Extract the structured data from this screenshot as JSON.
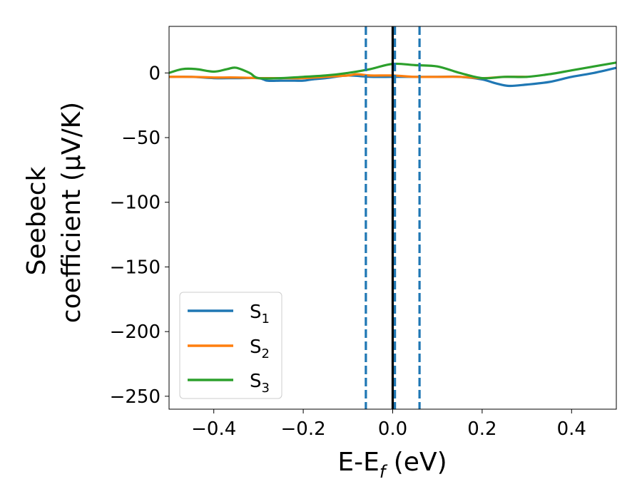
{
  "chart_data": {
    "type": "line",
    "xlabel": {
      "main": "E-E",
      "sub": "f",
      "suffix": " (eV)"
    },
    "ylabel": {
      "line1": "Seebeck",
      "line2": "coefficient  (μV/K)"
    },
    "xlim": [
      -0.5,
      0.5
    ],
    "ylim": [
      -260,
      36
    ],
    "xticks": [
      -0.4,
      -0.2,
      0.0,
      0.2,
      0.4
    ],
    "xtick_labels": [
      "−0.4",
      "−0.2",
      "0.0",
      "0.2",
      "0.4"
    ],
    "yticks": [
      0,
      -50,
      -100,
      -150,
      -200,
      -250
    ],
    "ytick_labels": [
      "0",
      "−50",
      "−100",
      "−150",
      "−200",
      "−250"
    ],
    "grid": false,
    "legend_position": "lower-left",
    "vlines": [
      {
        "x": 0.0,
        "style": "solid",
        "color": "#000000"
      },
      {
        "x": -0.06,
        "style": "dashed",
        "color": "#1f77b4"
      },
      {
        "x": 0.005,
        "style": "dashed",
        "color": "#1f77b4"
      },
      {
        "x": 0.06,
        "style": "dashed",
        "color": "#1f77b4"
      }
    ],
    "series": [
      {
        "name": "S1",
        "name_main": "S",
        "name_sub": "1",
        "color": "#1f77b4",
        "x": [
          -0.5,
          -0.45,
          -0.4,
          -0.35,
          -0.3,
          -0.28,
          -0.25,
          -0.22,
          -0.2,
          -0.18,
          -0.15,
          -0.1,
          -0.05,
          0.0,
          0.05,
          0.1,
          0.15,
          0.2,
          0.23,
          0.26,
          0.3,
          0.35,
          0.4,
          0.45,
          0.5
        ],
        "y": [
          -3,
          -3,
          -4,
          -4,
          -4,
          -6,
          -6,
          -6,
          -6,
          -5,
          -4,
          -2,
          -3,
          -3,
          -3,
          -3,
          -3,
          -5,
          -8,
          -10,
          -9,
          -7,
          -3,
          0,
          4
        ]
      },
      {
        "name": "S2",
        "name_main": "S",
        "name_sub": "2",
        "color": "#ff7f0e",
        "x": [
          -0.5,
          -0.45,
          -0.4,
          -0.35,
          -0.3,
          -0.25,
          -0.2,
          -0.15,
          -0.1,
          -0.08,
          -0.05,
          0.0,
          0.05,
          0.1,
          0.15,
          0.2,
          0.25,
          0.3
        ],
        "y": [
          -3,
          -3,
          -3.5,
          -3.5,
          -4,
          -4,
          -4,
          -3,
          -2,
          -1,
          -2,
          -2,
          -3,
          -3,
          -3,
          -4,
          -3,
          -3
        ]
      },
      {
        "name": "S3",
        "name_main": "S",
        "name_sub": "3",
        "color": "#2ca02c",
        "x": [
          -0.5,
          -0.47,
          -0.44,
          -0.4,
          -0.37,
          -0.35,
          -0.32,
          -0.3,
          -0.25,
          -0.2,
          -0.15,
          -0.1,
          -0.05,
          0.0,
          0.05,
          0.1,
          0.15,
          0.2,
          0.25,
          0.3,
          0.35,
          0.4,
          0.45,
          0.5
        ],
        "y": [
          0,
          3,
          3,
          1,
          3,
          4,
          0,
          -4,
          -4,
          -3,
          -2,
          0,
          3,
          7,
          6,
          5,
          0,
          -4,
          -3,
          -3,
          -1,
          2,
          5,
          8
        ]
      }
    ]
  }
}
